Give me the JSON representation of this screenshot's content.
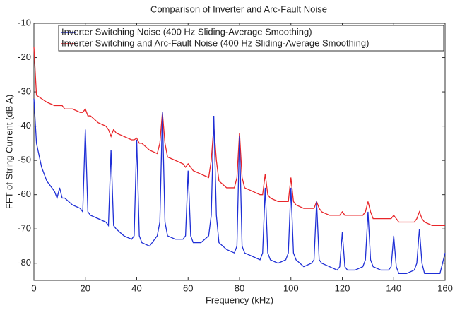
{
  "chart_data": {
    "type": "line",
    "title": "Comparison of Inverter and Arc-Fault Noise",
    "xlabel": "Frequency (kHz)",
    "ylabel": "FFT of String Current (dB A)",
    "xlim": [
      0,
      160
    ],
    "ylim": [
      -85,
      -10
    ],
    "xticks": [
      0,
      20,
      40,
      60,
      80,
      100,
      120,
      140,
      160
    ],
    "yticks": [
      -10,
      -20,
      -30,
      -40,
      -50,
      -60,
      -70,
      -80
    ],
    "legend": "upper right",
    "x": [
      0,
      1,
      3,
      5,
      8,
      9,
      10,
      11,
      12,
      15,
      18,
      19,
      20,
      21,
      22,
      25,
      28,
      29,
      30,
      31,
      32,
      35,
      38,
      39,
      40,
      41,
      42,
      45,
      48,
      49,
      50,
      51,
      52,
      55,
      58,
      59,
      60,
      61,
      62,
      65,
      68,
      69,
      70,
      71,
      72,
      75,
      78,
      79,
      80,
      81,
      82,
      85,
      88,
      89,
      90,
      91,
      92,
      95,
      98,
      99,
      100,
      101,
      102,
      105,
      108,
      109,
      110,
      111,
      112,
      115,
      118,
      119,
      120,
      121,
      122,
      125,
      128,
      129,
      130,
      131,
      132,
      135,
      138,
      139,
      140,
      141,
      142,
      145,
      148,
      149,
      150,
      151,
      152,
      155,
      158,
      160
    ],
    "series": [
      {
        "name": "Inverter Switching Noise (400 Hz Sliding-Average Smoothing)",
        "color": "#1f2fd6",
        "values": [
          -32,
          -45,
          -52,
          -56,
          -59,
          -61,
          -58,
          -61,
          -61,
          -63,
          -64,
          -65,
          -41,
          -65,
          -66,
          -67,
          -68,
          -69,
          -47,
          -69,
          -70,
          -72,
          -73,
          -72,
          -44,
          -72,
          -74,
          -75,
          -72,
          -68,
          -36,
          -68,
          -72,
          -73,
          -73,
          -72,
          -53,
          -72,
          -74,
          -74,
          -72,
          -66,
          -37,
          -66,
          -74,
          -76,
          -77,
          -75,
          -43,
          -75,
          -77,
          -78,
          -79,
          -77,
          -58,
          -77,
          -79,
          -80,
          -79,
          -77,
          -58,
          -77,
          -79,
          -81,
          -80,
          -79,
          -62,
          -79,
          -80,
          -81,
          -82,
          -81,
          -71,
          -81,
          -82,
          -82,
          -81,
          -79,
          -65,
          -79,
          -81,
          -82,
          -82,
          -81,
          -72,
          -81,
          -83,
          -83,
          -82,
          -80,
          -70,
          -80,
          -83,
          -83,
          -83,
          -77
        ]
      },
      {
        "name": "Inverter Switching and Arc-Fault Noise (400 Hz Sliding-Average Smoothing)",
        "color": "#e8262a",
        "values": [
          -17,
          -31,
          -32,
          -33,
          -34,
          -34,
          -34,
          -34,
          -35,
          -35,
          -36,
          -36,
          -35,
          -37,
          -37,
          -39,
          -40,
          -41,
          -43,
          -41,
          -42,
          -43,
          -44,
          -44,
          -43.5,
          -45,
          -45,
          -47,
          -48,
          -45,
          -36,
          -45,
          -49,
          -50,
          -51,
          -52,
          -51,
          -52,
          -53,
          -54,
          -55,
          -50,
          -40,
          -50,
          -56,
          -58,
          -58,
          -55,
          -42,
          -55,
          -58,
          -59,
          -60,
          -60,
          -54,
          -60,
          -61,
          -62,
          -62,
          -62,
          -55,
          -62,
          -63,
          -64,
          -64,
          -64,
          -62,
          -64,
          -65,
          -66,
          -66,
          -66,
          -65,
          -66,
          -66,
          -66,
          -66,
          -65,
          -62,
          -65,
          -67,
          -67,
          -67,
          -67,
          -66,
          -67,
          -68,
          -68,
          -68,
          -67,
          -65,
          -67,
          -68,
          -69,
          -69,
          -69
        ]
      }
    ]
  }
}
